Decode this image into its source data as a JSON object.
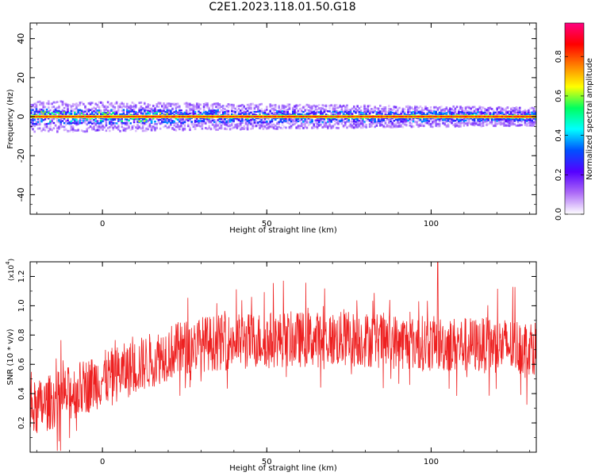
{
  "title": "C2E1.2023.118.01.50.G18",
  "chart_data": [
    {
      "type": "heatmap",
      "xlabel": "Height of straight line (km)",
      "ylabel": "Frequency (Hz)",
      "xlim": [
        -22,
        132
      ],
      "ylim": [
        -50,
        48
      ],
      "xticks": [
        0,
        50,
        100
      ],
      "yticks": [
        40,
        20,
        0,
        -20,
        -40
      ],
      "colorbar": {
        "label": "Normalized spectral amplitude",
        "range": [
          0,
          0.97
        ],
        "ticks": [
          "0.0",
          "0.2",
          "0.4",
          "0.6",
          "0.8"
        ],
        "colors": [
          "#ffffff",
          "#ad6bf7",
          "#5500ff",
          "#0050ff",
          "#00ffff",
          "#00ff60",
          "#ffff00",
          "#ff8000",
          "#ff0000",
          "#ff0080"
        ]
      },
      "ridge": {
        "description_frequency_hz": 0,
        "x_start": -22,
        "x_end": 132,
        "spread_hz_start": 7,
        "spread_hz_end": 4
      },
      "grid": false
    },
    {
      "type": "line",
      "xlabel": "Height of straight line (km)",
      "ylabel": "SNR (10 * v/v)",
      "multiplier_label": "(x10",
      "multiplier_exp": "4",
      "xlim": [
        -22,
        132
      ],
      "ylim": [
        0.0,
        1.3
      ],
      "xticks": [
        0,
        50,
        100
      ],
      "yticks": [
        "0.2",
        "0.4",
        "0.6",
        "0.8",
        "1.0",
        "1.2"
      ],
      "series": [
        {
          "color": "#ee2020",
          "trend": [
            [
              -22,
              0.28
            ],
            [
              -10,
              0.4
            ],
            [
              0,
              0.5
            ],
            [
              10,
              0.58
            ],
            [
              20,
              0.68
            ],
            [
              30,
              0.74
            ],
            [
              50,
              0.77
            ],
            [
              80,
              0.77
            ],
            [
              100,
              0.74
            ],
            [
              132,
              0.72
            ]
          ],
          "amplitude": 0.12,
          "samples": 1400,
          "peak": [
            102,
            1.31
          ]
        }
      ],
      "grid": false
    }
  ]
}
